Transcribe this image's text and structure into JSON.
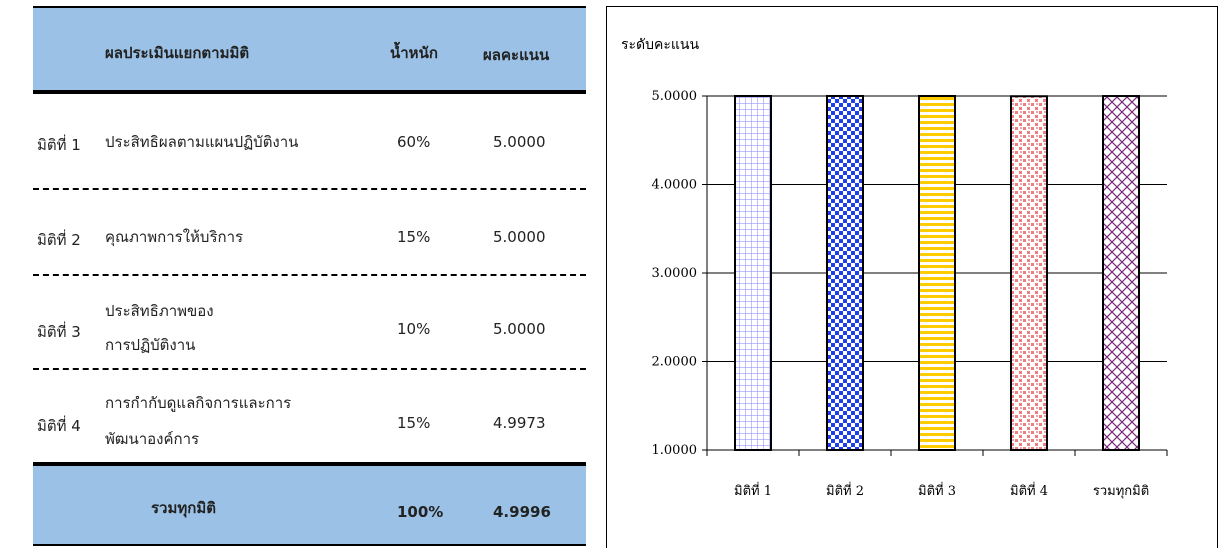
{
  "table": {
    "header": {
      "title": "ผลประเมินแยกตามมิติ",
      "weight": "น้ำหนัก",
      "score": "ผลคะแนน"
    },
    "rows": [
      {
        "dimension": "มิติที่ 1",
        "name_lines": [
          "ประสิทธิผลตามแผนปฏิบัติงาน"
        ],
        "weight": "60%",
        "score": "5.0000"
      },
      {
        "dimension": "มิติที่ 2",
        "name_lines": [
          "คุณภาพการให้บริการ"
        ],
        "weight": "15%",
        "score": "5.0000"
      },
      {
        "dimension": "มิติที่ 3",
        "name_lines": [
          "ประสิทธิภาพของ",
          "การปฏิบัติงาน"
        ],
        "weight": "10%",
        "score": "5.0000"
      },
      {
        "dimension": "มิติที่ 4",
        "name_lines": [
          "การกำกับดูแลกิจการและการ",
          "พัฒนาองค์การ"
        ],
        "weight": "15%",
        "score": "4.9973"
      }
    ],
    "total": {
      "label": "รวมทุกมิติ",
      "weight": "100%",
      "score": "4.9996"
    }
  },
  "chart_data": {
    "type": "bar",
    "title": "",
    "ylabel": "ระดับคะแนน",
    "xlabel": "",
    "categories": [
      "มิติที่ 1",
      "มิติที่ 2",
      "มิติที่ 3",
      "มิติที่ 4",
      "รวมทุกมิติ"
    ],
    "values": [
      5.0,
      5.0,
      5.0,
      4.9973,
      4.9996
    ],
    "ylim": [
      1,
      5
    ],
    "yticks": [
      "1.0000",
      "2.0000",
      "3.0000",
      "4.0000",
      "5.0000"
    ],
    "grid": true,
    "bar_styles": [
      {
        "pattern": "grid",
        "color": "#9999ff",
        "bg": "#ffffff"
      },
      {
        "pattern": "checker",
        "color": "#1f3fe8",
        "bg": "#ffffff"
      },
      {
        "pattern": "stripes",
        "color": "#ffcc00",
        "bg": "#ffffff"
      },
      {
        "pattern": "dots",
        "color": "#f08080",
        "bg": "#ffffff"
      },
      {
        "pattern": "diag-cross",
        "color": "#7a2a7a",
        "bg": "#ffffff"
      }
    ]
  }
}
